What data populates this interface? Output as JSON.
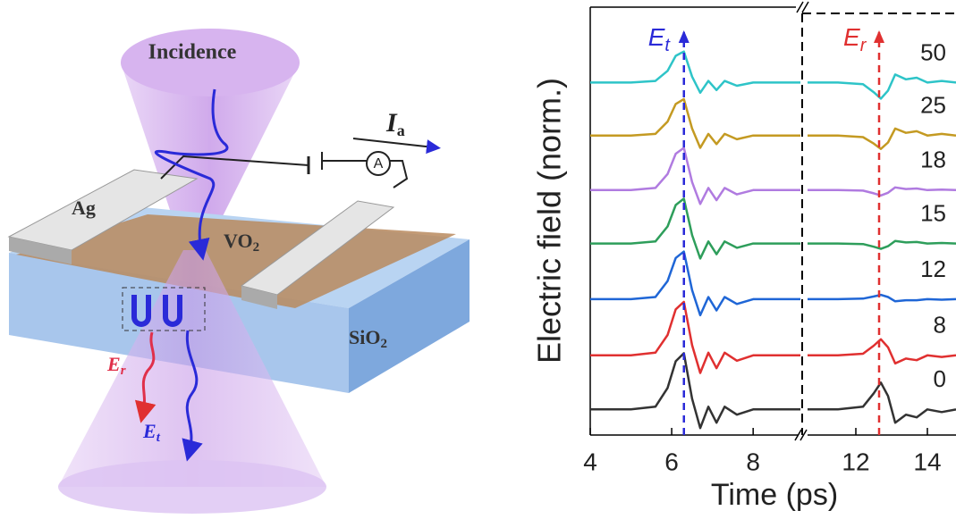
{
  "diagram": {
    "labels": {
      "incidence": "Incidence",
      "ag": "Ag",
      "vo2": {
        "main": "VO",
        "sub": "2"
      },
      "sio2": {
        "main": "SiO",
        "sub": "2"
      },
      "ia": {
        "main": "I",
        "sub": "a"
      },
      "ammeter": "A",
      "er": {
        "main": "E",
        "sub": "r"
      },
      "et": {
        "main": "E",
        "sub": "t"
      }
    }
  },
  "chart_data": [
    {
      "type": "line",
      "ylabel": "Electric field (norm.)",
      "xlabel": "Time (ps)",
      "xlim": [
        4,
        9.16
      ],
      "xticks": [
        4,
        6,
        8
      ],
      "ylim": [
        0,
        8
      ],
      "marker": {
        "x": 6.3,
        "color": "#2a2ad8",
        "label": {
          "main": "E",
          "sub": "t"
        }
      },
      "x": [
        4,
        5,
        5.6,
        5.9,
        6.1,
        6.3,
        6.5,
        6.7,
        6.9,
        7.1,
        7.3,
        7.6,
        8,
        9.16
      ],
      "series": [
        {
          "color": "#2ec4c8",
          "values": [
            6.59,
            6.59,
            6.62,
            6.81,
            7.09,
            7.17,
            6.7,
            6.4,
            6.62,
            6.45,
            6.62,
            6.53,
            6.59,
            6.59
          ]
        },
        {
          "color": "#c49a22",
          "values": [
            5.6,
            5.6,
            5.63,
            5.86,
            6.19,
            6.28,
            5.73,
            5.37,
            5.63,
            5.44,
            5.63,
            5.53,
            5.6,
            5.6
          ]
        },
        {
          "color": "#b07be0",
          "values": [
            4.58,
            4.58,
            4.62,
            4.88,
            5.26,
            5.37,
            4.73,
            4.32,
            4.62,
            4.39,
            4.62,
            4.5,
            4.58,
            4.58
          ]
        },
        {
          "color": "#2e9e5b",
          "values": [
            3.58,
            3.58,
            3.62,
            3.9,
            4.3,
            4.42,
            3.74,
            3.3,
            3.62,
            3.38,
            3.62,
            3.5,
            3.58,
            3.58
          ]
        },
        {
          "color": "#1f66d6",
          "values": [
            2.54,
            2.54,
            2.58,
            2.88,
            3.31,
            3.43,
            2.71,
            2.24,
            2.58,
            2.33,
            2.58,
            2.45,
            2.54,
            2.54
          ]
        },
        {
          "color": "#e03030",
          "values": [
            1.49,
            1.49,
            1.54,
            1.87,
            2.35,
            2.49,
            1.68,
            1.16,
            1.54,
            1.25,
            1.54,
            1.39,
            1.49,
            1.49
          ]
        },
        {
          "color": "#333333",
          "values": [
            0.48,
            0.48,
            0.53,
            0.88,
            1.38,
            1.53,
            0.68,
            0.13,
            0.53,
            0.23,
            0.53,
            0.38,
            0.48,
            0.48
          ]
        }
      ]
    },
    {
      "type": "line",
      "xlim": [
        10.65,
        14.8
      ],
      "xticks": [
        12,
        14
      ],
      "ylim": [
        0,
        8
      ],
      "marker": {
        "x": 12.65,
        "color": "#e03030",
        "label": {
          "main": "E",
          "sub": "r"
        }
      },
      "x": [
        10.65,
        11.5,
        12.2,
        12.5,
        12.7,
        12.9,
        13.1,
        13.4,
        13.7,
        14,
        14.4,
        14.8
      ],
      "series": [
        {
          "name": "50",
          "color": "#2ec4c8",
          "values": [
            6.59,
            6.59,
            6.56,
            6.41,
            6.29,
            6.44,
            6.74,
            6.65,
            6.68,
            6.59,
            6.62,
            6.59
          ]
        },
        {
          "name": "25",
          "color": "#c49a22",
          "values": [
            5.6,
            5.6,
            5.57,
            5.45,
            5.35,
            5.47,
            5.73,
            5.65,
            5.68,
            5.6,
            5.63,
            5.6
          ]
        },
        {
          "name": "18",
          "color": "#b07be0",
          "values": [
            4.58,
            4.58,
            4.57,
            4.52,
            4.48,
            4.53,
            4.63,
            4.6,
            4.61,
            4.58,
            4.59,
            4.58
          ]
        },
        {
          "name": "15",
          "color": "#2e9e5b",
          "values": [
            3.58,
            3.58,
            3.57,
            3.52,
            3.48,
            3.53,
            3.63,
            3.6,
            3.61,
            3.58,
            3.59,
            3.58
          ]
        },
        {
          "name": "12",
          "color": "#1f66d6",
          "values": [
            2.54,
            2.54,
            2.55,
            2.59,
            2.62,
            2.58,
            2.5,
            2.52,
            2.52,
            2.54,
            2.53,
            2.54
          ]
        },
        {
          "name": "8",
          "color": "#e03030",
          "values": [
            1.49,
            1.49,
            1.52,
            1.67,
            1.79,
            1.64,
            1.34,
            1.43,
            1.4,
            1.49,
            1.46,
            1.49
          ]
        },
        {
          "name": "0",
          "color": "#333333",
          "values": [
            0.48,
            0.48,
            0.53,
            0.78,
            0.98,
            0.73,
            0.23,
            0.38,
            0.33,
            0.48,
            0.43,
            0.48
          ]
        }
      ]
    }
  ]
}
